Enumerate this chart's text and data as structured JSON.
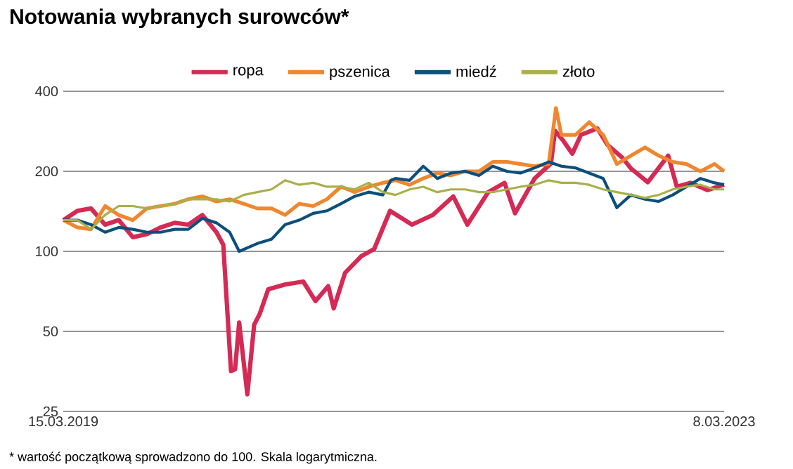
{
  "chart_data": {
    "type": "line",
    "title": "Notowania wybranych surowców*",
    "annotations": [
      "* wartość początkową sprowadzono do 100. Skala logarytmiczna."
    ],
    "log": "y",
    "grid": "y",
    "legend": "top",
    "xlim": [
      "2019-03-15",
      "2023-03-08"
    ],
    "xticks": [
      {
        "value": "2019-03-15",
        "label": "15.03.2019"
      },
      {
        "value": "2023-03-08",
        "label": "8.03.2023"
      }
    ],
    "ylim": [
      25,
      400
    ],
    "yticks": [
      25,
      50,
      100,
      200,
      400
    ],
    "series": [
      {
        "name": "ropa",
        "color": "#d42a54",
        "x": [
          "2019-03-15",
          "2019-04-15",
          "2019-05-15",
          "2019-06-15",
          "2019-07-15",
          "2019-08-15",
          "2019-09-15",
          "2019-10-15",
          "2019-11-15",
          "2019-12-15",
          "2020-01-15",
          "2020-02-15",
          "2020-03-01",
          "2020-03-18",
          "2020-03-27",
          "2020-04-05",
          "2020-04-23",
          "2020-05-08",
          "2020-05-20",
          "2020-06-08",
          "2020-07-15",
          "2020-08-24",
          "2020-09-20",
          "2020-10-18",
          "2020-10-30",
          "2020-11-24",
          "2020-12-30",
          "2021-01-27",
          "2021-03-03",
          "2021-04-20",
          "2021-06-05",
          "2021-07-20",
          "2021-08-20",
          "2021-10-05",
          "2021-11-10",
          "2021-12-03",
          "2022-01-15",
          "2022-02-20",
          "2022-03-01",
          "2022-03-18",
          "2022-04-08",
          "2022-04-27",
          "2022-06-02",
          "2022-06-24",
          "2022-07-27",
          "2022-08-15",
          "2022-09-21",
          "2022-11-05",
          "2022-11-24",
          "2022-12-24",
          "2023-01-30",
          "2023-03-08"
        ],
        "values": [
          131,
          142,
          145,
          126,
          131,
          113,
          116,
          123,
          128,
          126,
          137,
          118,
          106,
          35.5,
          36,
          54,
          29,
          53,
          58,
          72,
          75,
          77,
          65,
          74,
          61,
          83,
          96,
          102,
          142,
          126,
          137,
          161,
          126,
          167,
          181,
          139,
          188,
          214,
          284,
          262,
          233,
          274,
          290,
          252,
          225,
          205,
          182,
          229,
          175,
          181,
          170,
          178
        ]
      },
      {
        "name": "pszenica",
        "color": "#f0862e",
        "x": [
          "2019-03-15",
          "2019-04-15",
          "2019-05-15",
          "2019-06-15",
          "2019-07-15",
          "2019-08-15",
          "2019-09-15",
          "2019-10-15",
          "2019-11-15",
          "2019-12-15",
          "2020-01-15",
          "2020-02-15",
          "2020-03-15",
          "2020-04-15",
          "2020-05-15",
          "2020-06-15",
          "2020-07-15",
          "2020-08-15",
          "2020-09-15",
          "2020-10-15",
          "2020-11-15",
          "2020-12-15",
          "2021-01-15",
          "2021-02-15",
          "2021-03-15",
          "2021-04-15",
          "2021-05-15",
          "2021-06-15",
          "2021-07-15",
          "2021-08-15",
          "2021-09-15",
          "2021-10-15",
          "2021-11-15",
          "2021-12-15",
          "2022-01-15",
          "2022-02-15",
          "2022-03-03",
          "2022-03-15",
          "2022-04-15",
          "2022-05-15",
          "2022-06-15",
          "2022-07-15",
          "2022-08-15",
          "2022-09-15",
          "2022-10-15",
          "2022-11-15",
          "2022-12-15",
          "2023-01-15",
          "2023-02-15",
          "2023-03-08"
        ],
        "values": [
          131,
          123,
          121,
          148,
          137,
          131,
          145,
          148,
          151,
          157,
          161,
          154,
          157,
          151,
          145,
          145,
          137,
          151,
          148,
          157,
          175,
          167,
          175,
          181,
          185,
          178,
          188,
          197,
          193,
          200,
          200,
          217,
          217,
          213,
          209,
          213,
          346,
          274,
          274,
          306,
          274,
          213,
          229,
          246,
          229,
          217,
          213,
          200,
          213,
          200
        ]
      },
      {
        "name": "miedź",
        "color": "#0b4f7c",
        "x": [
          "2019-03-15",
          "2019-04-15",
          "2019-05-15",
          "2019-06-15",
          "2019-07-15",
          "2019-08-15",
          "2019-09-15",
          "2019-10-15",
          "2019-11-15",
          "2019-12-15",
          "2020-01-15",
          "2020-02-15",
          "2020-03-15",
          "2020-04-05",
          "2020-05-15",
          "2020-06-15",
          "2020-07-15",
          "2020-08-15",
          "2020-09-15",
          "2020-10-15",
          "2020-11-15",
          "2020-12-15",
          "2021-01-15",
          "2021-02-15",
          "2021-03-05",
          "2021-03-15",
          "2021-04-15",
          "2021-05-15",
          "2021-06-15",
          "2021-07-15",
          "2021-08-15",
          "2021-09-15",
          "2021-10-15",
          "2021-11-15",
          "2021-12-15",
          "2022-01-15",
          "2022-02-15",
          "2022-03-15",
          "2022-04-15",
          "2022-05-15",
          "2022-06-15",
          "2022-07-15",
          "2022-08-15",
          "2022-09-15",
          "2022-10-15",
          "2022-11-15",
          "2022-12-15",
          "2023-01-15",
          "2023-02-15",
          "2023-03-08"
        ],
        "values": [
          131,
          131,
          126,
          118,
          123,
          121,
          118,
          118,
          121,
          121,
          133,
          128,
          118,
          100,
          107,
          111,
          126,
          131,
          139,
          142,
          151,
          161,
          167,
          163,
          185,
          188,
          185,
          209,
          188,
          197,
          200,
          193,
          209,
          200,
          197,
          206,
          217,
          209,
          206,
          197,
          188,
          146,
          163,
          157,
          154,
          163,
          175,
          188,
          181,
          178
        ]
      },
      {
        "name": "złoto",
        "color": "#a9b04a",
        "x": [
          "2019-03-15",
          "2019-04-15",
          "2019-05-15",
          "2019-06-15",
          "2019-07-15",
          "2019-08-15",
          "2019-09-15",
          "2019-10-15",
          "2019-11-15",
          "2019-12-15",
          "2020-01-15",
          "2020-02-15",
          "2020-03-15",
          "2020-04-15",
          "2020-05-15",
          "2020-06-15",
          "2020-07-15",
          "2020-08-15",
          "2020-09-15",
          "2020-10-15",
          "2020-11-15",
          "2020-12-15",
          "2021-01-15",
          "2021-02-15",
          "2021-03-15",
          "2021-04-15",
          "2021-05-15",
          "2021-06-15",
          "2021-07-15",
          "2021-08-15",
          "2021-09-15",
          "2021-10-15",
          "2021-11-15",
          "2021-12-15",
          "2022-01-15",
          "2022-02-15",
          "2022-03-15",
          "2022-04-15",
          "2022-05-15",
          "2022-06-15",
          "2022-07-15",
          "2022-08-15",
          "2022-09-15",
          "2022-10-15",
          "2022-11-15",
          "2022-12-15",
          "2023-01-15",
          "2023-02-15",
          "2023-03-08"
        ],
        "values": [
          131,
          131,
          121,
          137,
          148,
          148,
          145,
          148,
          151,
          157,
          157,
          157,
          154,
          163,
          167,
          171,
          185,
          178,
          181,
          175,
          175,
          171,
          181,
          167,
          163,
          171,
          175,
          167,
          171,
          171,
          167,
          167,
          171,
          175,
          178,
          185,
          181,
          181,
          178,
          171,
          167,
          163,
          159,
          163,
          171,
          175,
          178,
          171,
          171
        ]
      }
    ]
  }
}
